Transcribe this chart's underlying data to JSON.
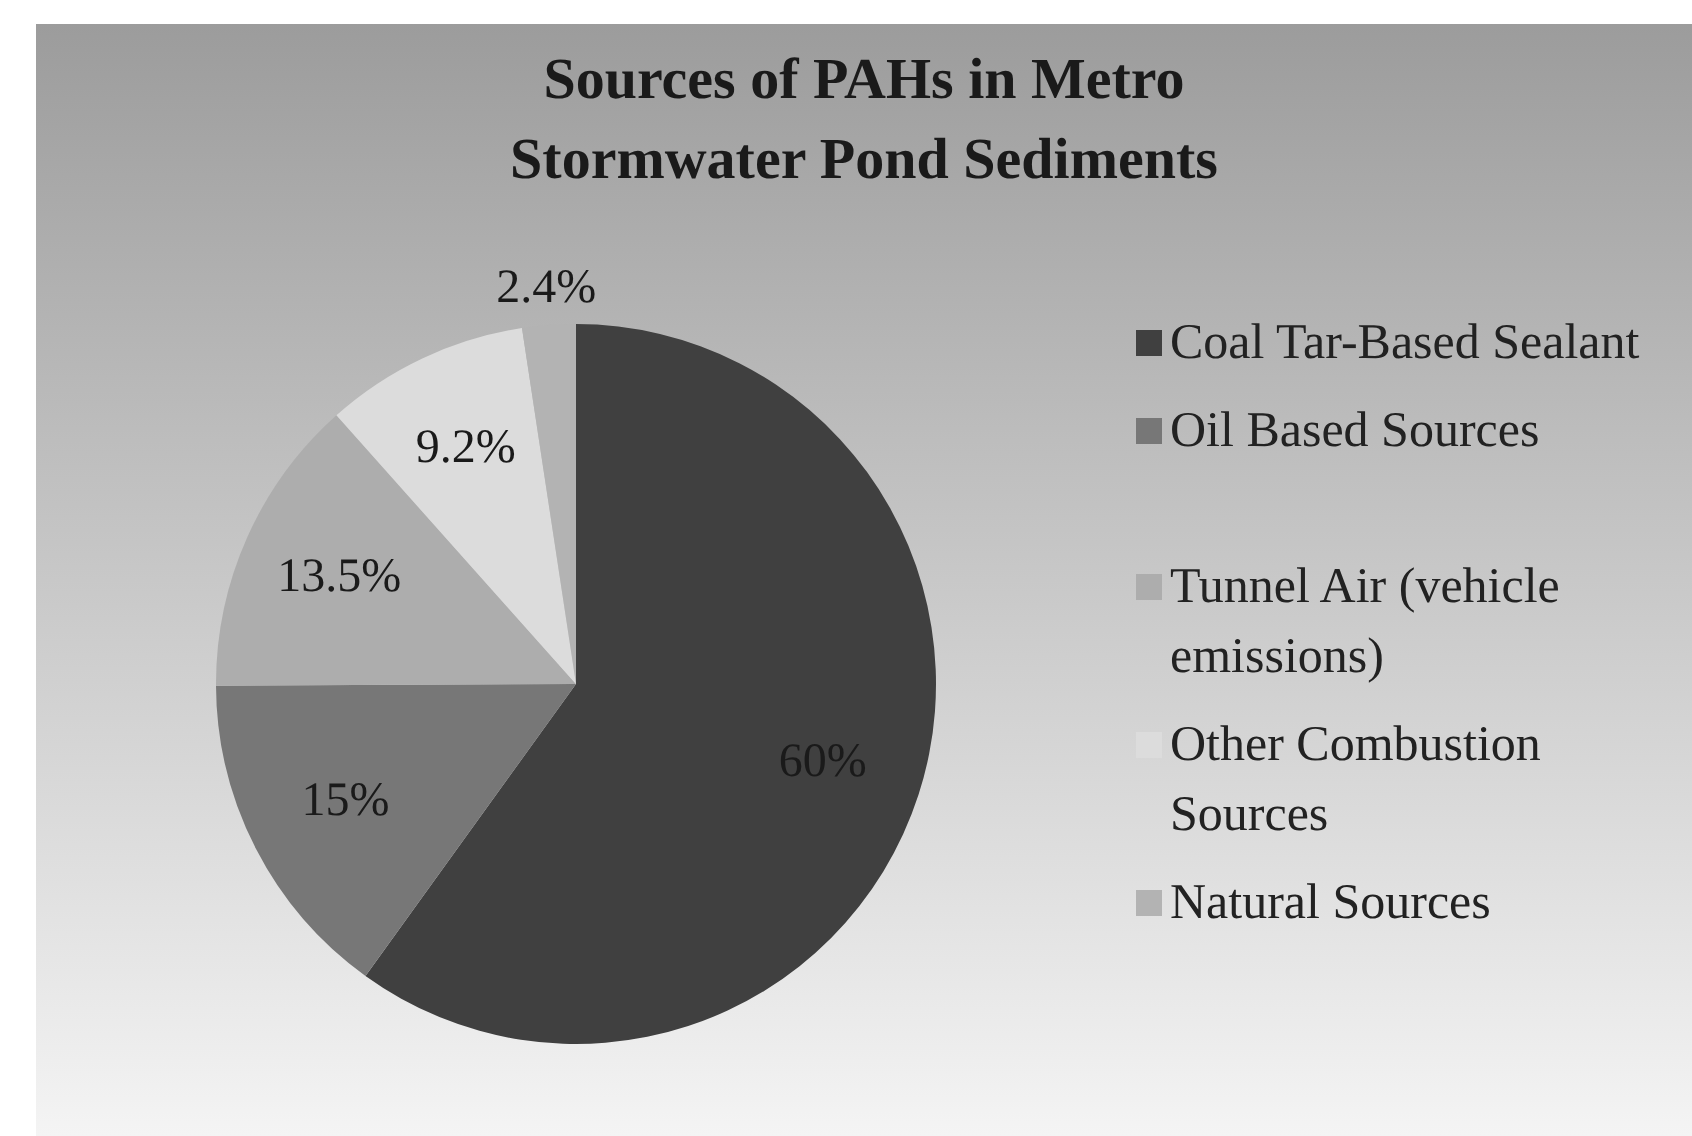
{
  "chart_data": {
    "type": "pie",
    "title": "Sources of PAHs in Metro Stormwater Pond Sediments",
    "categories": [
      "Coal Tar-Based Sealant",
      "Oil Based Sources",
      "Tunnel Air (vehicle emissions)",
      "Other Combustion Sources",
      "Natural Sources"
    ],
    "values": [
      60,
      15,
      13.5,
      9.2,
      2.4
    ],
    "value_labels": [
      "60%",
      "15%",
      "13.5%",
      "9.2%",
      "2.4%"
    ],
    "colors": [
      "#404040",
      "#777777",
      "#adadad",
      "#dcdcdc",
      "#b3b3b3"
    ],
    "legend": "right"
  }
}
